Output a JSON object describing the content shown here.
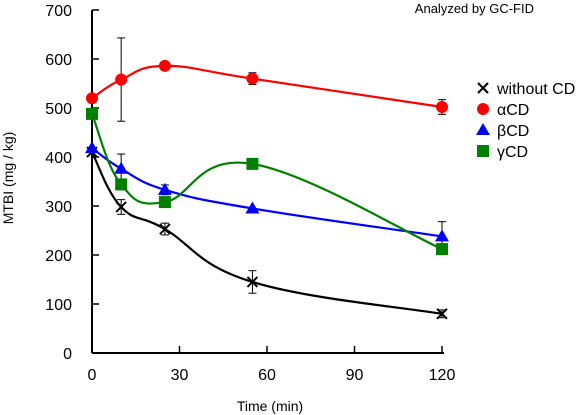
{
  "chart_data": {
    "type": "line",
    "title": "",
    "annotation": "Analyzed by GC-FID",
    "xlabel": "Time (min)",
    "ylabel": "MTBI (mg / kg)",
    "xlim": [
      0,
      120
    ],
    "ylim": [
      0,
      700
    ],
    "xticks": [
      0,
      30,
      60,
      90,
      120
    ],
    "yticks": [
      0,
      100,
      200,
      300,
      400,
      500,
      600,
      700
    ],
    "grid": false,
    "legend_position": "right",
    "x": [
      0,
      10,
      25,
      55,
      120
    ],
    "series": [
      {
        "name": "without CD",
        "marker": "x",
        "color": "#000000",
        "values": [
          410,
          298,
          253,
          145,
          80
        ],
        "errors": [
          0,
          15,
          12,
          23,
          8
        ]
      },
      {
        "name": "αCD",
        "marker": "circle",
        "color": "#ff0000",
        "values": [
          520,
          558,
          586,
          560,
          502
        ],
        "errors": [
          0,
          85,
          8,
          12,
          15
        ]
      },
      {
        "name": "βCD",
        "marker": "triangle",
        "color": "#0000ff",
        "values": [
          418,
          376,
          333,
          295,
          238
        ],
        "errors": [
          0,
          30,
          10,
          0,
          30
        ]
      },
      {
        "name": "γCD",
        "marker": "square",
        "color": "#008000",
        "values": [
          488,
          344,
          308,
          386,
          212
        ],
        "errors": [
          0,
          10,
          0,
          0,
          0
        ],
        "errors_extra_note": ""
      }
    ]
  }
}
